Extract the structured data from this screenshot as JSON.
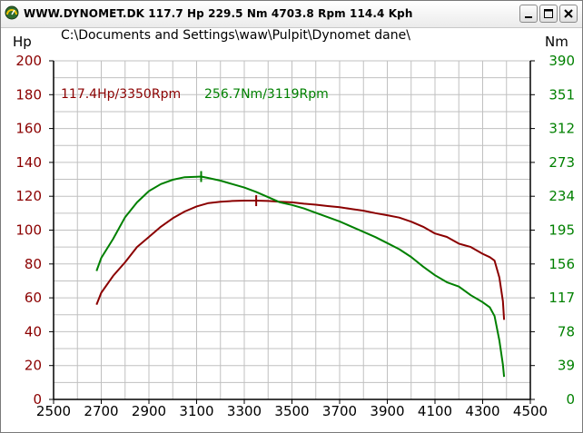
{
  "window": {
    "title": "WWW.DYNOMET.DK  117.7 Hp  229.5 Nm  4703.8 Rpm  114.4 Kph"
  },
  "file_path": "C:\\Documents and Settings\\waw\\Pulpit\\Dynomet dane\\",
  "colors": {
    "power": "#8b0000",
    "torque": "#008000",
    "grid": "#c0c0c0"
  },
  "chart_data": {
    "type": "line",
    "xlabel": "",
    "x_ticks": [
      "2500",
      "2700",
      "2900",
      "3100",
      "3300",
      "3500",
      "3700",
      "3900",
      "4100",
      "4300",
      "4500"
    ],
    "xlim": [
      2500,
      4500
    ],
    "left_axis": {
      "label": "Hp",
      "ticks": [
        "200",
        "180",
        "160",
        "140",
        "120",
        "100",
        "80",
        "60",
        "40",
        "20",
        "0"
      ],
      "ylim": [
        0,
        200
      ]
    },
    "right_axis": {
      "label": "Nm",
      "ticks": [
        "390",
        "351",
        "312",
        "273",
        "234",
        "195",
        "156",
        "117",
        "78",
        "39",
        "0"
      ],
      "ylim": [
        0,
        390
      ]
    },
    "annotations": {
      "power_peak": "117.4Hp/3350Rpm",
      "torque_peak": "256.7Nm/3119Rpm"
    },
    "grid": true,
    "series": [
      {
        "key": "power",
        "axis": "left",
        "x": [
          2680,
          2700,
          2750,
          2800,
          2850,
          2900,
          2950,
          3000,
          3050,
          3100,
          3150,
          3200,
          3250,
          3300,
          3350,
          3400,
          3450,
          3500,
          3550,
          3600,
          3650,
          3700,
          3750,
          3800,
          3850,
          3900,
          3950,
          4000,
          4050,
          4100,
          4150,
          4200,
          4250,
          4300,
          4330,
          4350,
          4370,
          4385,
          4390
        ],
        "values": [
          56,
          63,
          73,
          81,
          90,
          96,
          102,
          107,
          111,
          114,
          116,
          116.8,
          117.2,
          117.4,
          117.4,
          117.2,
          116.8,
          116.4,
          115.6,
          115,
          114.2,
          113.5,
          112.5,
          111.5,
          110,
          108.8,
          107.4,
          105,
          102,
          98,
          96,
          92,
          90,
          86,
          84,
          82,
          72,
          58,
          47
        ]
      },
      {
        "key": "torque",
        "axis": "right",
        "x": [
          2680,
          2700,
          2750,
          2800,
          2850,
          2900,
          2950,
          3000,
          3050,
          3100,
          3119,
          3150,
          3200,
          3250,
          3300,
          3350,
          3400,
          3450,
          3500,
          3550,
          3600,
          3650,
          3700,
          3750,
          3800,
          3850,
          3900,
          3950,
          4000,
          4050,
          4100,
          4150,
          4200,
          4250,
          4300,
          4330,
          4350,
          4370,
          4385,
          4390
        ],
        "values": [
          148,
          163,
          185,
          210,
          227,
          240,
          248,
          253,
          256,
          256.5,
          256.7,
          255,
          252,
          248,
          244,
          239,
          233,
          227,
          224,
          220,
          215,
          210,
          205,
          199,
          193,
          187,
          180,
          173,
          164,
          153,
          143,
          135,
          130,
          120,
          112,
          106,
          96,
          68,
          40,
          26
        ]
      }
    ],
    "peak_markers": [
      {
        "series": "power",
        "x": 3350,
        "y": 117.4
      },
      {
        "series": "torque",
        "x": 3119,
        "y": 256.7
      }
    ]
  }
}
